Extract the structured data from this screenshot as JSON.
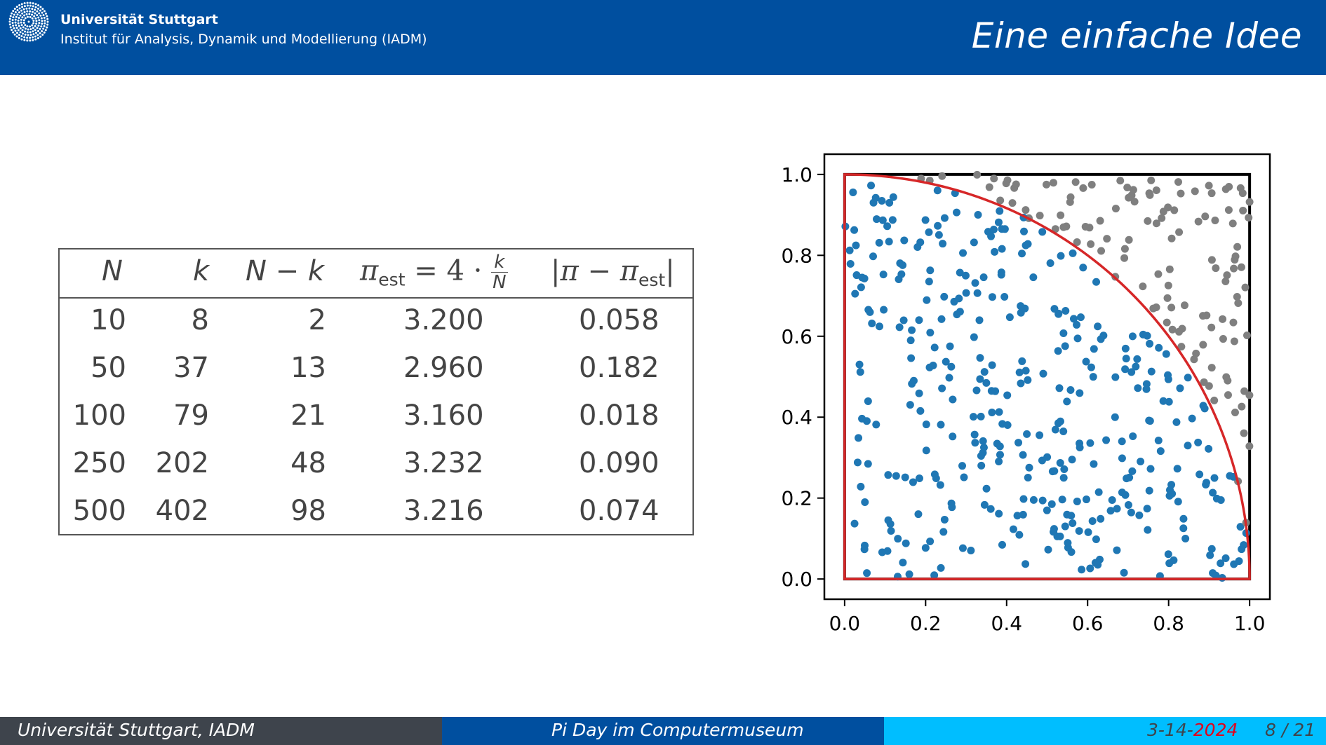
{
  "header": {
    "university": "Universität Stuttgart",
    "institute": "Institut für Analysis, Dynamik und Modellierung (IADM)",
    "slide_title": "Eine einfache Idee"
  },
  "table": {
    "rows": [
      {
        "N": "10",
        "k": "8",
        "Nk": "2",
        "pi_est": "3.200",
        "err": "0.058"
      },
      {
        "N": "50",
        "k": "37",
        "Nk": "13",
        "pi_est": "2.960",
        "err": "0.182"
      },
      {
        "N": "100",
        "k": "79",
        "Nk": "21",
        "pi_est": "3.160",
        "err": "0.018"
      },
      {
        "N": "250",
        "k": "202",
        "Nk": "48",
        "pi_est": "3.232",
        "err": "0.090"
      },
      {
        "N": "500",
        "k": "402",
        "Nk": "98",
        "pi_est": "3.216",
        "err": "0.074"
      }
    ]
  },
  "chart_data": {
    "type": "scatter",
    "x_ticks": [
      "0.0",
      "0.2",
      "0.4",
      "0.6",
      "0.8",
      "1.0"
    ],
    "y_ticks": [
      "0.0",
      "0.2",
      "0.4",
      "0.6",
      "0.8",
      "1.0"
    ],
    "xlim": [
      -0.05,
      1.05
    ],
    "ylim": [
      -0.05,
      1.05
    ],
    "n_points": 500,
    "inside_count": 402,
    "colors": {
      "inside": "#1f77b4",
      "outside": "#7f7f7f",
      "arc": "#d62728",
      "square": "#000000"
    }
  },
  "footer": {
    "left": "Universität Stuttgart, IADM",
    "center": "Pi Day im Computermuseum",
    "date_prefix": "3-14-",
    "date_year": "2024",
    "page": "8 / 21"
  }
}
